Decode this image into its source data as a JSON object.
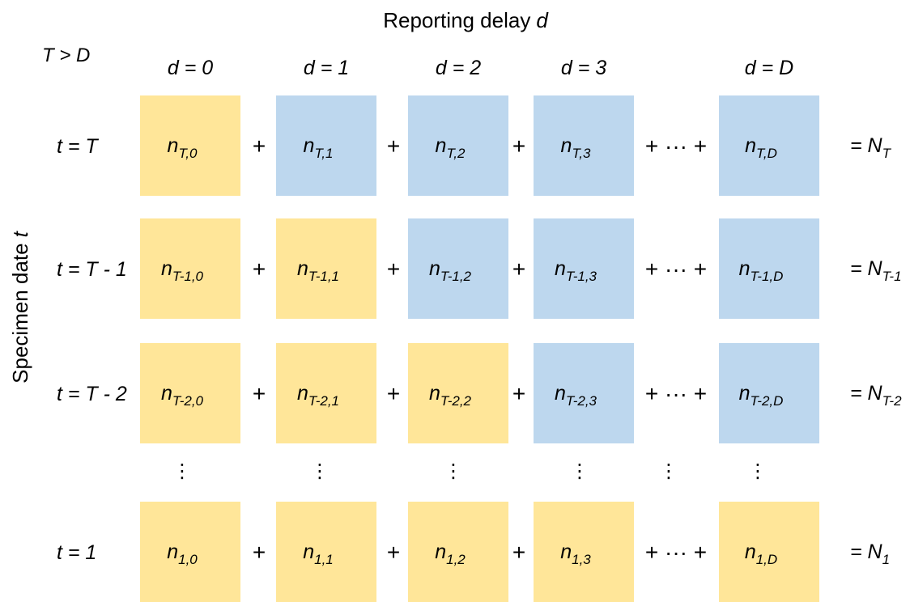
{
  "title": {
    "text": "Reporting delay",
    "variable": "d"
  },
  "condition": "T > D",
  "y_axis_label": {
    "text": "Specimen date",
    "variable": "t"
  },
  "columns": [
    "d = 0",
    "d = 1",
    "d = 2",
    "d = 3",
    "d = D"
  ],
  "operators": {
    "plus": "+",
    "ellipsis": "+ ··· +",
    "vdots": "⋮"
  },
  "rows": [
    {
      "label": "t = T",
      "cells": [
        {
          "main": "n",
          "sub": "T,0",
          "color": "#FFE699"
        },
        {
          "main": "n",
          "sub": "T,1",
          "color": "#BDD7EE"
        },
        {
          "main": "n",
          "sub": "T,2",
          "color": "#BDD7EE"
        },
        {
          "main": "n",
          "sub": "T,3",
          "color": "#BDD7EE"
        },
        {
          "main": "n",
          "sub": "T,D",
          "color": "#BDD7EE"
        }
      ],
      "total": {
        "main": "= N",
        "sub": "T"
      }
    },
    {
      "label": "t = T - 1",
      "cells": [
        {
          "main": "n",
          "sub": "T-1,0",
          "color": "#FFE699"
        },
        {
          "main": "n",
          "sub": "T-1,1",
          "color": "#FFE699"
        },
        {
          "main": "n",
          "sub": "T-1,2",
          "color": "#BDD7EE"
        },
        {
          "main": "n",
          "sub": "T-1,3",
          "color": "#BDD7EE"
        },
        {
          "main": "n",
          "sub": "T-1,D",
          "color": "#BDD7EE"
        }
      ],
      "total": {
        "main": "= N",
        "sub": "T-1"
      }
    },
    {
      "label": "t = T - 2",
      "cells": [
        {
          "main": "n",
          "sub": "T-2,0",
          "color": "#FFE699"
        },
        {
          "main": "n",
          "sub": "T-2,1",
          "color": "#FFE699"
        },
        {
          "main": "n",
          "sub": "T-2,2",
          "color": "#FFE699"
        },
        {
          "main": "n",
          "sub": "T-2,3",
          "color": "#BDD7EE"
        },
        {
          "main": "n",
          "sub": "T-2,D",
          "color": "#BDD7EE"
        }
      ],
      "total": {
        "main": "= N",
        "sub": "T-2"
      }
    },
    {
      "label": "t = 1",
      "cells": [
        {
          "main": "n",
          "sub": "1,0",
          "color": "#FFE699"
        },
        {
          "main": "n",
          "sub": "1,1",
          "color": "#FFE699"
        },
        {
          "main": "n",
          "sub": "1,2",
          "color": "#FFE699"
        },
        {
          "main": "n",
          "sub": "1,3",
          "color": "#FFE699"
        },
        {
          "main": "n",
          "sub": "1,D",
          "color": "#FFE699"
        }
      ],
      "total": {
        "main": "= N",
        "sub": "1"
      }
    }
  ]
}
